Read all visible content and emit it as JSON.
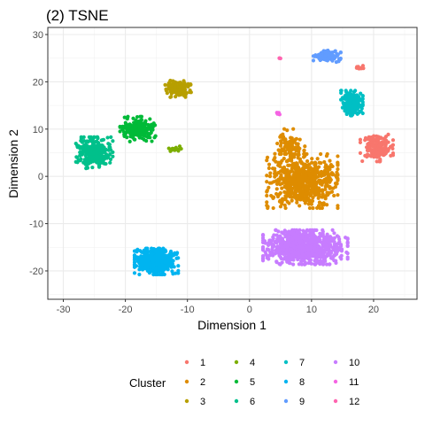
{
  "chart_data": {
    "type": "scatter",
    "title": "(2) TSNE",
    "xlabel": "Dimension 1",
    "ylabel": "Dimension 2",
    "xlim": [
      -32.5,
      27.0
    ],
    "ylim": [
      -26.0,
      31.5
    ],
    "x_ticks": [
      -30,
      -20,
      -10,
      0,
      10,
      20
    ],
    "y_ticks": [
      -20,
      -10,
      0,
      10,
      20,
      30
    ],
    "grid": true,
    "legend": {
      "title": "Cluster",
      "placement": "bottom"
    },
    "series": [
      {
        "name": "1",
        "color": "#F8766D",
        "clusters": [
          {
            "center": [
              20.5,
              6.0
            ],
            "spread": [
              2.4,
              2.6
            ],
            "count": 170
          },
          {
            "center": [
              17.8,
              23.0
            ],
            "spread": [
              0.9,
              0.4
            ],
            "count": 14
          }
        ]
      },
      {
        "name": "2",
        "color": "#DE8C00",
        "clusters": [
          {
            "center": [
              8.5,
              -1.0
            ],
            "spread": [
              5.2,
              5.2
            ],
            "count": 720
          },
          {
            "center": [
              6.5,
              6.5
            ],
            "spread": [
              2.2,
              3.2
            ],
            "count": 90
          }
        ]
      },
      {
        "name": "3",
        "color": "#B79F00",
        "clusters": [
          {
            "center": [
              -11.5,
              18.5
            ],
            "spread": [
              1.9,
              1.6
            ],
            "count": 130
          }
        ]
      },
      {
        "name": "4",
        "color": "#7CAE00",
        "clusters": [
          {
            "center": [
              -12.0,
              5.8
            ],
            "spread": [
              0.9,
              0.5
            ],
            "count": 16
          }
        ]
      },
      {
        "name": "5",
        "color": "#00BA38",
        "clusters": [
          {
            "center": [
              -18.0,
              10.0
            ],
            "spread": [
              2.6,
              2.4
            ],
            "count": 210
          }
        ]
      },
      {
        "name": "6",
        "color": "#00C08B",
        "clusters": [
          {
            "center": [
              -25.0,
              5.0
            ],
            "spread": [
              2.7,
              3.0
            ],
            "count": 320
          }
        ]
      },
      {
        "name": "7",
        "color": "#00BFC4",
        "clusters": [
          {
            "center": [
              16.5,
              15.5
            ],
            "spread": [
              1.6,
              2.4
            ],
            "count": 200
          }
        ]
      },
      {
        "name": "8",
        "color": "#00B4F0",
        "clusters": [
          {
            "center": [
              -15.0,
              -18.0
            ],
            "spread": [
              3.2,
              2.5
            ],
            "count": 460
          }
        ]
      },
      {
        "name": "9",
        "color": "#619CFF",
        "clusters": [
          {
            "center": [
              12.5,
              25.5
            ],
            "spread": [
              2.0,
              1.2
            ],
            "count": 130
          }
        ]
      },
      {
        "name": "10",
        "color": "#C77CFF",
        "clusters": [
          {
            "center": [
              9.0,
              -15.0
            ],
            "spread": [
              6.2,
              3.3
            ],
            "count": 800
          }
        ]
      },
      {
        "name": "11",
        "color": "#F564E3",
        "clusters": [
          {
            "center": [
              4.5,
              13.2
            ],
            "spread": [
              0.5,
              0.3
            ],
            "count": 8
          }
        ]
      },
      {
        "name": "12",
        "color": "#FF64B0",
        "clusters": [
          {
            "center": [
              4.9,
              25.0
            ],
            "spread": [
              0.15,
              0.15
            ],
            "count": 3
          }
        ]
      }
    ]
  }
}
